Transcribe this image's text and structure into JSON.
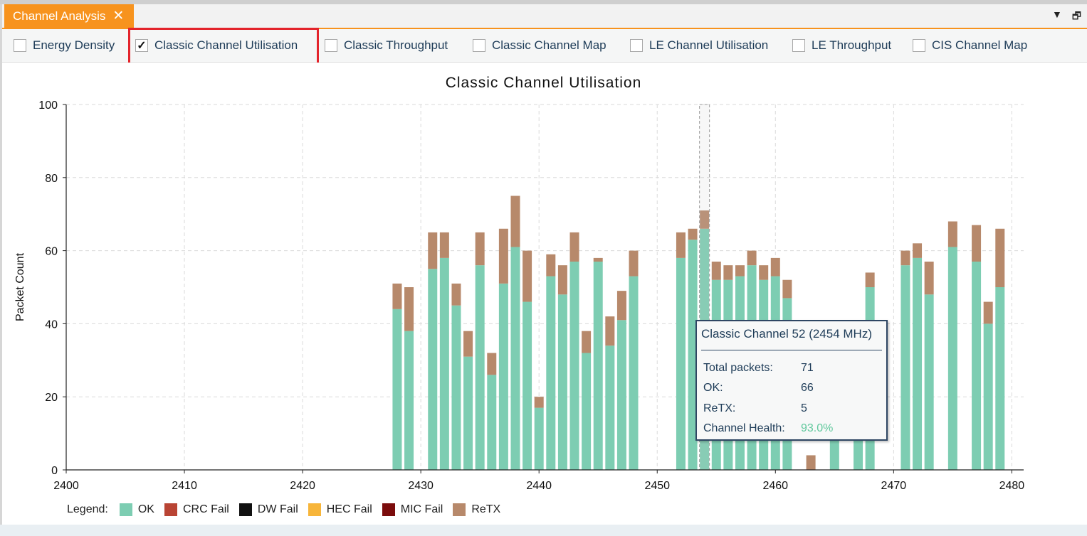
{
  "panel": {
    "tab_title": "Channel Analysis",
    "close_glyph": "✕",
    "menu_glyph": "▼",
    "restore_glyph": "🗗"
  },
  "options": [
    {
      "label": "Energy Density",
      "checked": false
    },
    {
      "label": "Classic Channel Utilisation",
      "checked": true
    },
    {
      "label": "Classic Throughput",
      "checked": false
    },
    {
      "label": "Classic Channel Map",
      "checked": false
    },
    {
      "label": "LE Channel Utilisation",
      "checked": false
    },
    {
      "label": "LE Throughput",
      "checked": false
    },
    {
      "label": "CIS Channel Map",
      "checked": false
    }
  ],
  "check_glyph": "✓",
  "chart_data": {
    "type": "bar",
    "stacked": true,
    "title": "Classic Channel Utilisation",
    "xlabel": "",
    "ylabel": "Packet Count",
    "xlim": [
      2400,
      2481
    ],
    "ylim": [
      0,
      100
    ],
    "xticks": [
      2400,
      2410,
      2420,
      2430,
      2440,
      2450,
      2460,
      2470,
      2480
    ],
    "yticks": [
      0,
      20,
      40,
      60,
      80,
      100
    ],
    "grid": true,
    "highlighted_x": 2454,
    "bar_x": [
      2428,
      2429,
      2431,
      2432,
      2433,
      2434,
      2435,
      2436,
      2437,
      2438,
      2439,
      2440,
      2441,
      2442,
      2443,
      2444,
      2445,
      2446,
      2447,
      2448,
      2452,
      2453,
      2454,
      2455,
      2456,
      2457,
      2458,
      2459,
      2460,
      2461,
      2463,
      2465,
      2467,
      2468,
      2471,
      2472,
      2473,
      2475,
      2477,
      2478,
      2479
    ],
    "series": [
      {
        "name": "OK",
        "color": "#7dcdb2",
        "values": [
          44,
          38,
          55,
          58,
          45,
          31,
          56,
          26,
          51,
          61,
          46,
          17,
          53,
          48,
          57,
          32,
          57,
          34,
          41,
          53,
          58,
          63,
          66,
          52,
          52,
          53,
          56,
          52,
          53,
          47,
          0,
          40,
          40,
          50,
          56,
          58,
          48,
          61,
          57,
          40,
          50
        ]
      },
      {
        "name": "ReTX",
        "color": "#b7896b",
        "values": [
          7,
          12,
          10,
          7,
          6,
          7,
          9,
          6,
          15,
          14,
          14,
          3,
          6,
          8,
          8,
          6,
          1,
          8,
          8,
          7,
          7,
          3,
          5,
          5,
          4,
          3,
          4,
          4,
          5,
          5,
          4,
          0,
          0,
          4,
          4,
          4,
          9,
          7,
          10,
          6,
          16
        ]
      }
    ],
    "legend": {
      "label": "Legend:",
      "placement": "bottom-left",
      "items": [
        {
          "name": "OK",
          "color": "#7dcdb2"
        },
        {
          "name": "CRC Fail",
          "color": "#b94434"
        },
        {
          "name": "DW Fail",
          "color": "#111111"
        },
        {
          "name": "HEC Fail",
          "color": "#f7b53a"
        },
        {
          "name": "MIC Fail",
          "color": "#7b0c0c"
        },
        {
          "name": "ReTX",
          "color": "#b7896b"
        }
      ]
    }
  },
  "tooltip": {
    "title": "Classic Channel 52 (2454 MHz)",
    "rows": [
      {
        "label": "Total packets:",
        "value": "71"
      },
      {
        "label": "OK:",
        "value": "66"
      },
      {
        "label": "ReTX:",
        "value": "5"
      },
      {
        "label": "Channel Health:",
        "value": "93.0%"
      }
    ]
  }
}
